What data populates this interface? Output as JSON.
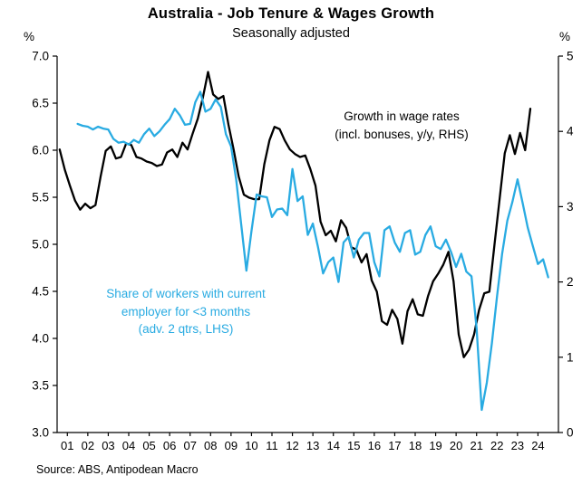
{
  "header": {
    "title": "Australia - Job Tenure & Wages Growth",
    "subtitle": "Seasonally adjusted"
  },
  "source_note": "Source: ABS, Antipodean Macro",
  "chart_data": {
    "type": "line",
    "title": "Australia - Job Tenure & Wages Growth",
    "subtitle": "Seasonally adjusted",
    "grid": false,
    "legend_position": "none (in-plot text annotations)",
    "left_axis": {
      "label": "%",
      "min": 3.0,
      "max": 7.0,
      "step": 0.5,
      "decimals": 1
    },
    "right_axis": {
      "label": "%",
      "min": 0,
      "max": 5,
      "step": 1,
      "decimals": 0
    },
    "x_axis": {
      "first_year": 2001,
      "labels": [
        "01",
        "02",
        "03",
        "04",
        "05",
        "06",
        "07",
        "08",
        "09",
        "10",
        "11",
        "12",
        "13",
        "14",
        "15",
        "16",
        "17",
        "18",
        "19",
        "20",
        "21",
        "22",
        "23",
        "24"
      ]
    },
    "annotations": [
      {
        "id": "wage-growth-label",
        "color": "#000000",
        "lines": [
          "Growth in wage rates",
          "(incl. bonuses, y/y, RHS)"
        ]
      },
      {
        "id": "tenure-share-label",
        "color": "#29ABE2",
        "lines": [
          "Share of workers with current",
          "employer for <3 months",
          "(adv. 2 qtrs, LHS)"
        ]
      }
    ],
    "series": [
      {
        "id": "wage_growth",
        "name": "Growth in wage rates (incl. bonuses, y/y, RHS)",
        "axis": "right",
        "color": "#000000",
        "x_start": 2001.125,
        "x_step": 0.25,
        "values": [
          3.76,
          3.49,
          3.28,
          3.08,
          2.96,
          3.04,
          2.98,
          3.02,
          3.4,
          3.74,
          3.8,
          3.64,
          3.66,
          3.84,
          3.82,
          3.66,
          3.64,
          3.6,
          3.58,
          3.54,
          3.56,
          3.72,
          3.76,
          3.66,
          3.85,
          3.76,
          3.97,
          4.17,
          4.45,
          4.79,
          4.49,
          4.43,
          4.47,
          4.09,
          3.76,
          3.4,
          3.16,
          3.12,
          3.1,
          3.1,
          3.56,
          3.88,
          4.06,
          4.03,
          3.88,
          3.76,
          3.7,
          3.66,
          3.68,
          3.5,
          3.28,
          2.8,
          2.62,
          2.68,
          2.54,
          2.82,
          2.72,
          2.46,
          2.43,
          2.26,
          2.37,
          2.02,
          1.87,
          1.48,
          1.43,
          1.63,
          1.51,
          1.18,
          1.61,
          1.77,
          1.57,
          1.55,
          1.81,
          2.01,
          2.11,
          2.23,
          2.4,
          2.01,
          1.3,
          1.0,
          1.1,
          1.3,
          1.63,
          1.85,
          1.87,
          2.5,
          3.1,
          3.71,
          3.95,
          3.7,
          3.98,
          3.75,
          4.3
        ]
      },
      {
        "id": "tenure_share",
        "name": "Share of workers with current employer for <3 months (adv. 2 qtrs, LHS)",
        "axis": "left",
        "color": "#29ABE2",
        "x_start": 2002.0,
        "x_step": 0.25,
        "values": [
          6.28,
          6.26,
          6.25,
          6.22,
          6.25,
          6.23,
          6.22,
          6.12,
          6.08,
          6.09,
          6.06,
          6.11,
          6.08,
          6.17,
          6.23,
          6.15,
          6.2,
          6.27,
          6.33,
          6.44,
          6.37,
          6.27,
          6.28,
          6.51,
          6.62,
          6.41,
          6.44,
          6.54,
          6.46,
          6.17,
          6.04,
          5.69,
          5.21,
          4.72,
          5.14,
          5.53,
          5.51,
          5.5,
          5.29,
          5.37,
          5.38,
          5.31,
          5.8,
          5.46,
          5.51,
          5.1,
          5.22,
          4.97,
          4.69,
          4.81,
          4.86,
          4.6,
          5.02,
          5.08,
          4.86,
          5.05,
          5.12,
          5.12,
          4.81,
          4.66,
          5.15,
          5.19,
          5.02,
          4.92,
          5.12,
          5.15,
          4.89,
          4.92,
          5.1,
          5.19,
          4.98,
          4.95,
          5.05,
          4.92,
          4.76,
          4.9,
          4.71,
          4.66,
          4.11,
          3.24,
          3.53,
          3.95,
          4.45,
          4.9,
          5.25,
          5.45,
          5.69,
          5.44,
          5.18,
          4.98,
          4.79,
          4.84,
          4.65
        ]
      }
    ]
  }
}
